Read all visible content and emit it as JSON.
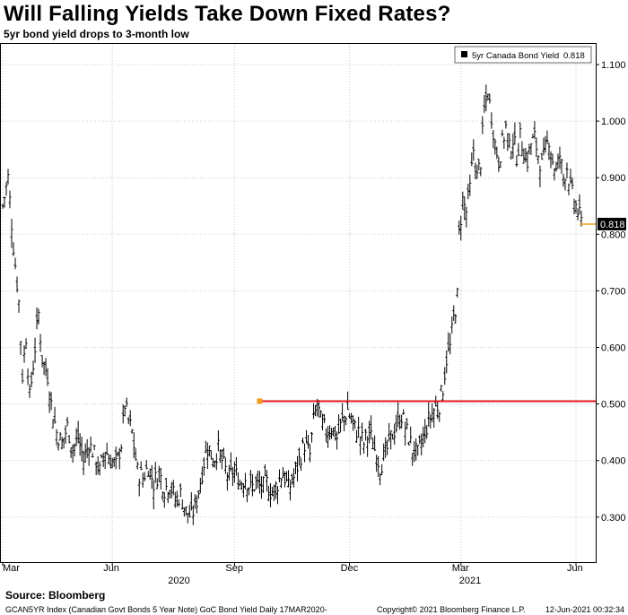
{
  "header": {
    "title": "Will Falling Yields Take Down Fixed Rates?",
    "subtitle": "5yr bond yield drops to 3-month low"
  },
  "footer": {
    "source": "Source: Bloomberg",
    "index_note": "GCAN5YR Index (Canadian Govt Bonds 5 Year Note) GoC Bond Yield  Daily 17MAR2020-",
    "copyright": "Copyright© 2021 Bloomberg Finance L.P.",
    "timestamp": "12-Jun-2021 00:32:34"
  },
  "colors": {
    "series": "#000000",
    "reference_line": "#e8141c",
    "marker": "#f29c1f",
    "grid": "#c8c8c8"
  },
  "chart_data": {
    "type": "line",
    "series": [
      {
        "name": "5yr Canada Bond Yield",
        "last_value": "0.818",
        "points": [
          [
            0,
            0.85
          ],
          [
            3,
            0.9
          ],
          [
            6,
            0.78
          ],
          [
            9,
            0.68
          ],
          [
            11,
            0.55
          ],
          [
            13,
            0.62
          ],
          [
            15,
            0.51
          ],
          [
            18,
            0.6
          ],
          [
            20,
            0.66
          ],
          [
            22,
            0.58
          ],
          [
            25,
            0.55
          ],
          [
            27,
            0.5
          ],
          [
            30,
            0.45
          ],
          [
            33,
            0.43
          ],
          [
            36,
            0.46
          ],
          [
            39,
            0.42
          ],
          [
            42,
            0.44
          ],
          [
            45,
            0.4
          ],
          [
            48,
            0.43
          ],
          [
            51,
            0.41
          ],
          [
            54,
            0.38
          ],
          [
            57,
            0.42
          ],
          [
            60,
            0.4
          ],
          [
            63,
            0.39
          ],
          [
            66,
            0.43
          ],
          [
            68,
            0.5
          ],
          [
            70,
            0.47
          ],
          [
            72,
            0.45
          ],
          [
            75,
            0.38
          ],
          [
            78,
            0.37
          ],
          [
            81,
            0.39
          ],
          [
            84,
            0.36
          ],
          [
            87,
            0.38
          ],
          [
            90,
            0.35
          ],
          [
            93,
            0.36
          ],
          [
            96,
            0.33
          ],
          [
            99,
            0.34
          ],
          [
            102,
            0.31
          ],
          [
            105,
            0.3
          ],
          [
            108,
            0.33
          ],
          [
            111,
            0.38
          ],
          [
            114,
            0.43
          ],
          [
            117,
            0.4
          ],
          [
            120,
            0.42
          ],
          [
            123,
            0.39
          ],
          [
            126,
            0.37
          ],
          [
            129,
            0.38
          ],
          [
            132,
            0.36
          ],
          [
            135,
            0.37
          ],
          [
            138,
            0.35
          ],
          [
            141,
            0.36
          ],
          [
            144,
            0.35
          ],
          [
            147,
            0.36
          ],
          [
            150,
            0.34
          ],
          [
            153,
            0.36
          ],
          [
            156,
            0.38
          ],
          [
            159,
            0.35
          ],
          [
            162,
            0.37
          ],
          [
            165,
            0.4
          ],
          [
            168,
            0.43
          ],
          [
            171,
            0.41
          ],
          [
            173,
            0.47
          ],
          [
            175,
            0.5
          ],
          [
            177,
            0.47
          ],
          [
            180,
            0.45
          ],
          [
            183,
            0.46
          ],
          [
            186,
            0.44
          ],
          [
            189,
            0.47
          ],
          [
            192,
            0.49
          ],
          [
            195,
            0.46
          ],
          [
            198,
            0.45
          ],
          [
            201,
            0.43
          ],
          [
            204,
            0.45
          ],
          [
            207,
            0.42
          ],
          [
            210,
            0.39
          ],
          [
            213,
            0.41
          ],
          [
            216,
            0.44
          ],
          [
            219,
            0.46
          ],
          [
            222,
            0.48
          ],
          [
            225,
            0.45
          ],
          [
            228,
            0.42
          ],
          [
            231,
            0.41
          ],
          [
            234,
            0.44
          ],
          [
            237,
            0.47
          ],
          [
            240,
            0.49
          ],
          [
            243,
            0.5
          ],
          [
            245,
            0.53
          ],
          [
            247,
            0.58
          ],
          [
            249,
            0.6
          ],
          [
            251,
            0.65
          ],
          [
            253,
            0.69
          ],
          [
            254,
            0.8
          ],
          [
            256,
            0.86
          ],
          [
            258,
            0.84
          ],
          [
            260,
            0.88
          ],
          [
            262,
            0.95
          ],
          [
            264,
            0.9
          ],
          [
            266,
            0.93
          ],
          [
            268,
            1.02
          ],
          [
            270,
            1.05
          ],
          [
            272,
            1.01
          ],
          [
            274,
            0.96
          ],
          [
            276,
            0.93
          ],
          [
            278,
            0.96
          ],
          [
            280,
            0.99
          ],
          [
            282,
            0.95
          ],
          [
            284,
            0.97
          ],
          [
            286,
            0.94
          ],
          [
            288,
            0.97
          ],
          [
            290,
            0.95
          ],
          [
            292,
            0.93
          ],
          [
            294,
            0.96
          ],
          [
            296,
            0.97
          ],
          [
            298,
            0.94
          ],
          [
            300,
            0.92
          ],
          [
            302,
            0.95
          ],
          [
            304,
            0.97
          ],
          [
            306,
            0.93
          ],
          [
            308,
            0.91
          ],
          [
            310,
            0.94
          ],
          [
            312,
            0.9
          ],
          [
            314,
            0.92
          ],
          [
            316,
            0.88
          ],
          [
            318,
            0.86
          ],
          [
            320,
            0.84
          ],
          [
            322,
            0.82
          ],
          [
            323,
            0.818
          ]
        ]
      }
    ],
    "reference_line": {
      "y": 0.505,
      "x_start": 143
    },
    "ylim": [
      0.25,
      1.12
    ],
    "y_ticks": [
      "0.300",
      "0.400",
      "0.500",
      "0.600",
      "0.700",
      "0.800",
      "0.900",
      "1.000",
      "1.100"
    ],
    "x_range": [
      0,
      323
    ],
    "x_ticks": [
      {
        "label": "Mar",
        "day": 0
      },
      {
        "label": "Jun",
        "day": 61
      },
      {
        "label": "Sep",
        "day": 129
      },
      {
        "label": "Dec",
        "day": 193
      },
      {
        "label": "Mar",
        "day": 255
      },
      {
        "label": "Jun",
        "day": 319
      }
    ],
    "year_labels": [
      {
        "label": "2020",
        "day": 98
      },
      {
        "label": "2021",
        "day": 260
      }
    ],
    "legend": {
      "position": "top-right",
      "label": "5yr Canada Bond Yield",
      "value": "0.818"
    },
    "grid": true,
    "y_axis_side": "right"
  }
}
